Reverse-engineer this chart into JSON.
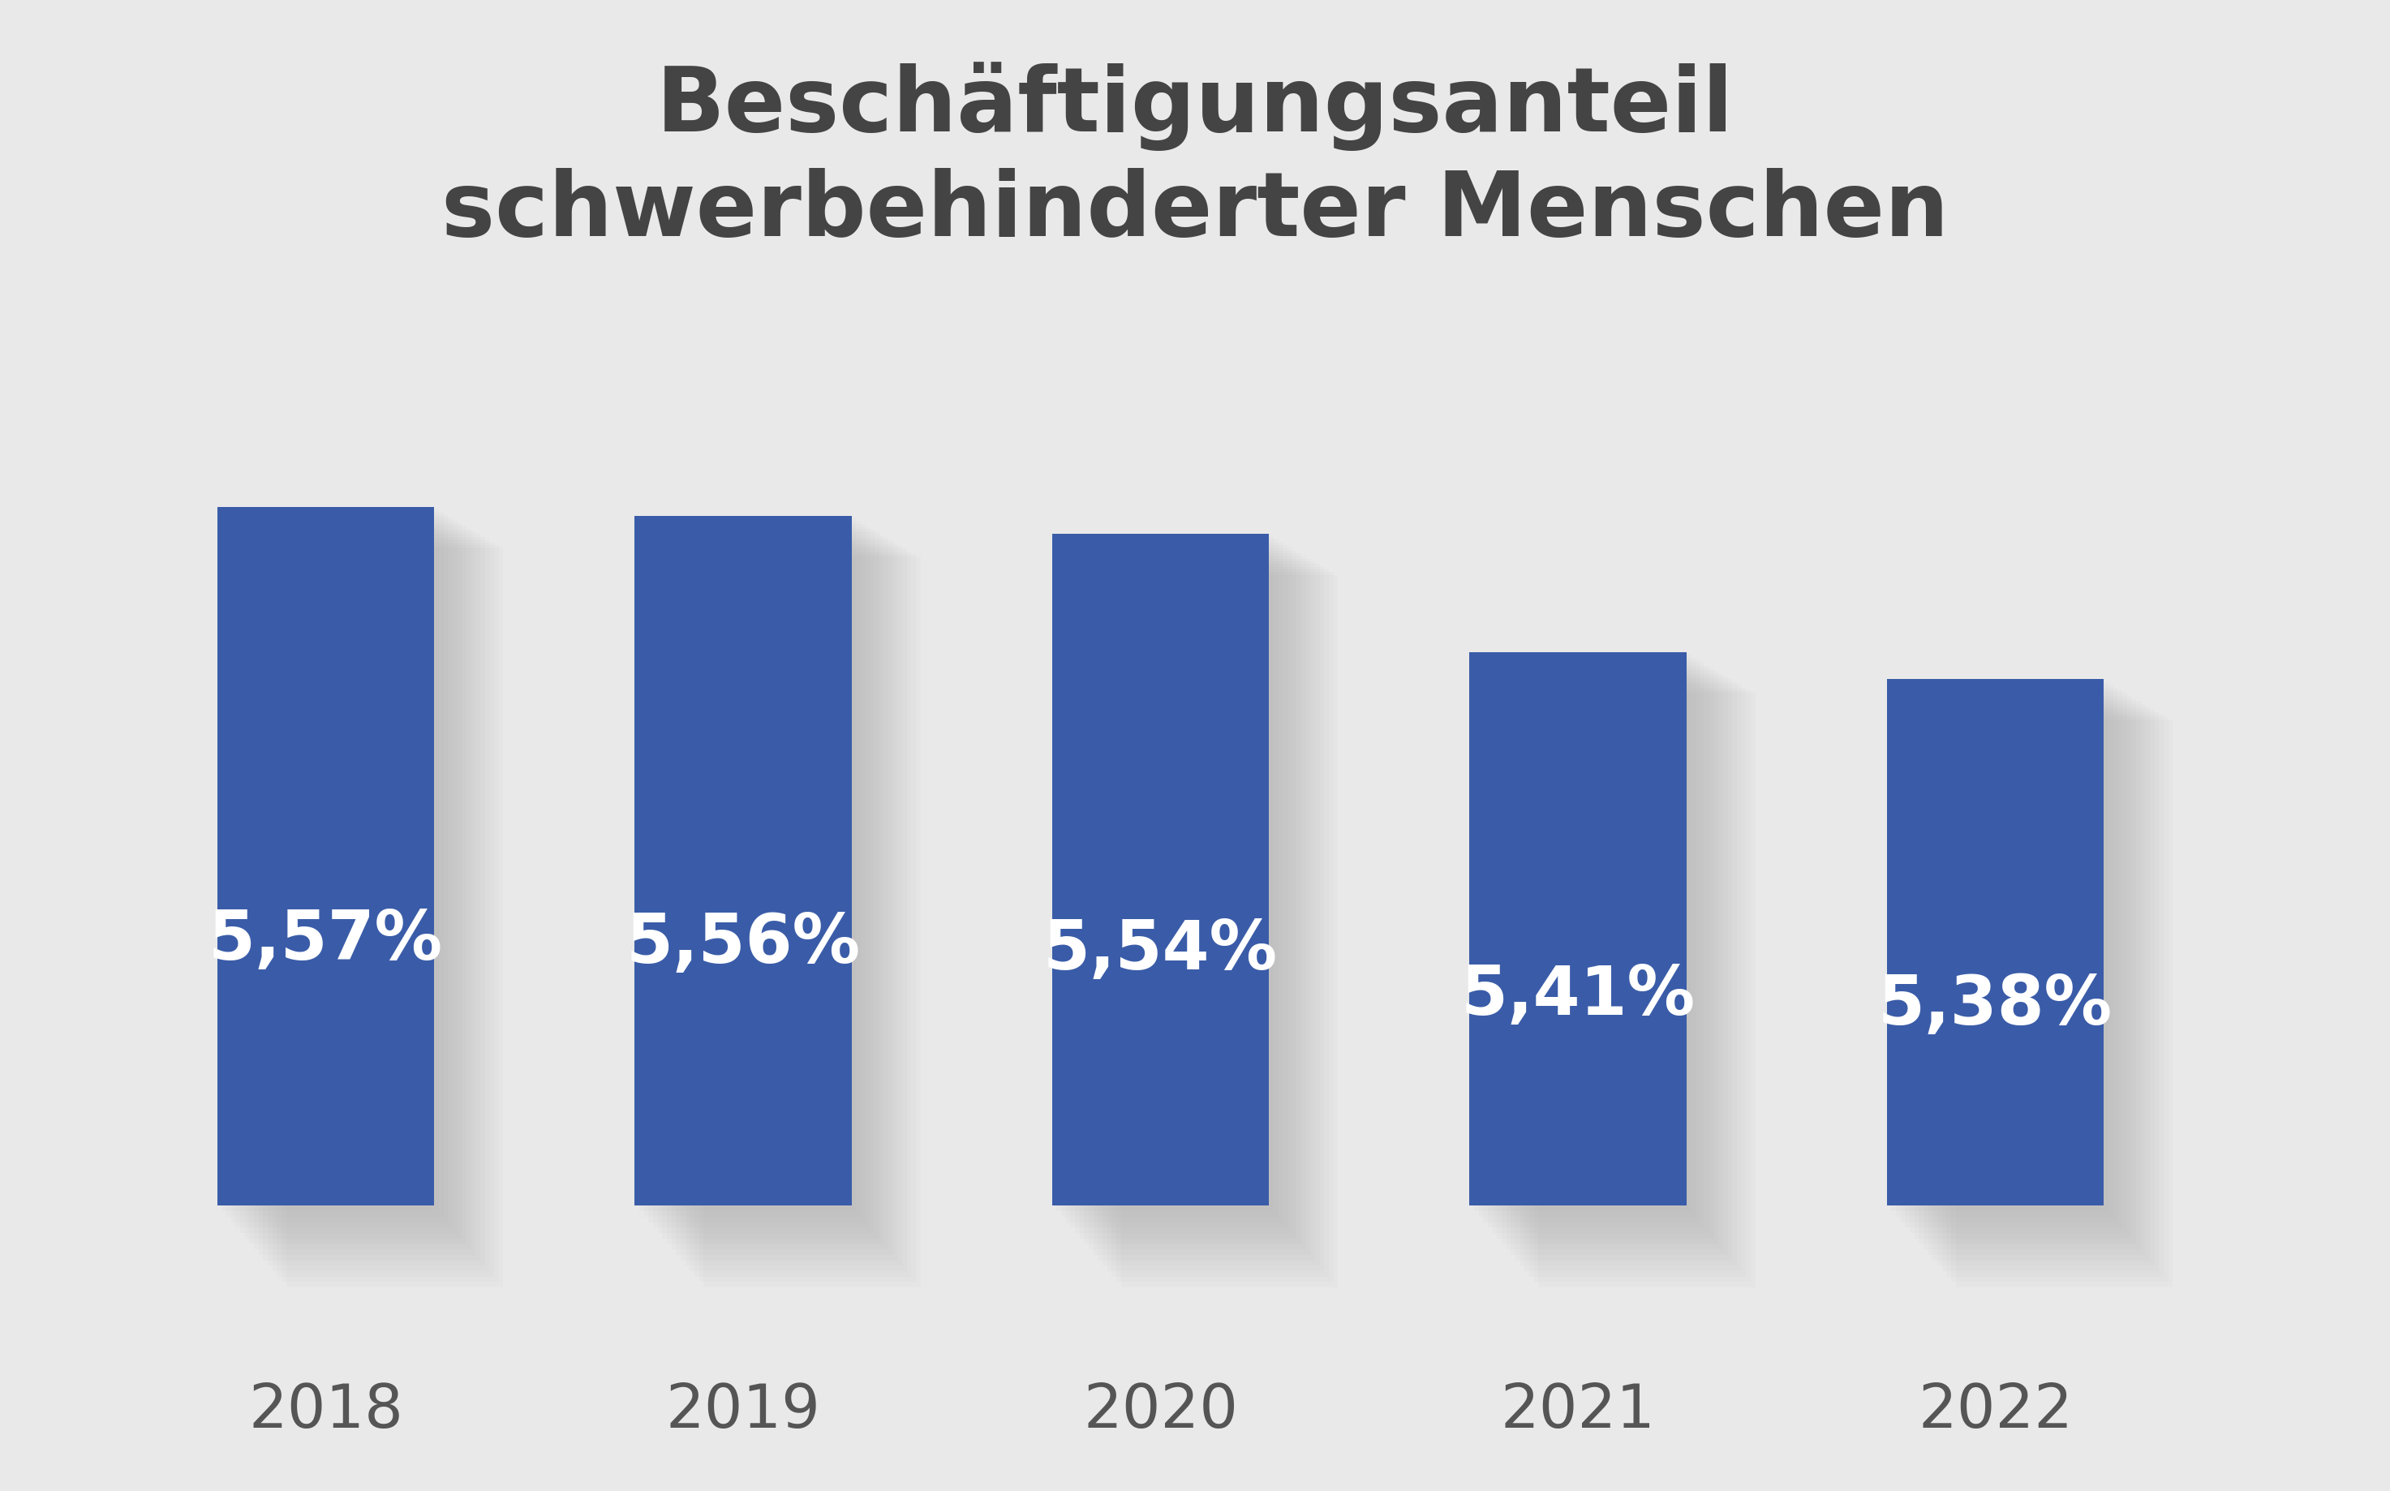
{
  "title_line1": "Beschäftigungsanteil",
  "title_line2": "schwerbehinderter Menschen",
  "categories": [
    "2018",
    "2019",
    "2020",
    "2021",
    "2022"
  ],
  "values": [
    5.57,
    5.56,
    5.54,
    5.41,
    5.38
  ],
  "labels": [
    "5,57%",
    "5,56%",
    "5,54%",
    "5,41%",
    "5,38%"
  ],
  "bar_color": "#3a5ca8",
  "background_color": "#e9e9e9",
  "title_color": "#444444",
  "label_color": "#ffffff",
  "tick_color": "#555555",
  "title_fontsize": 80,
  "label_fontsize": 60,
  "tick_fontsize": 54,
  "ylim_min": 4.8,
  "ylim_max": 5.8,
  "bar_width": 0.52
}
